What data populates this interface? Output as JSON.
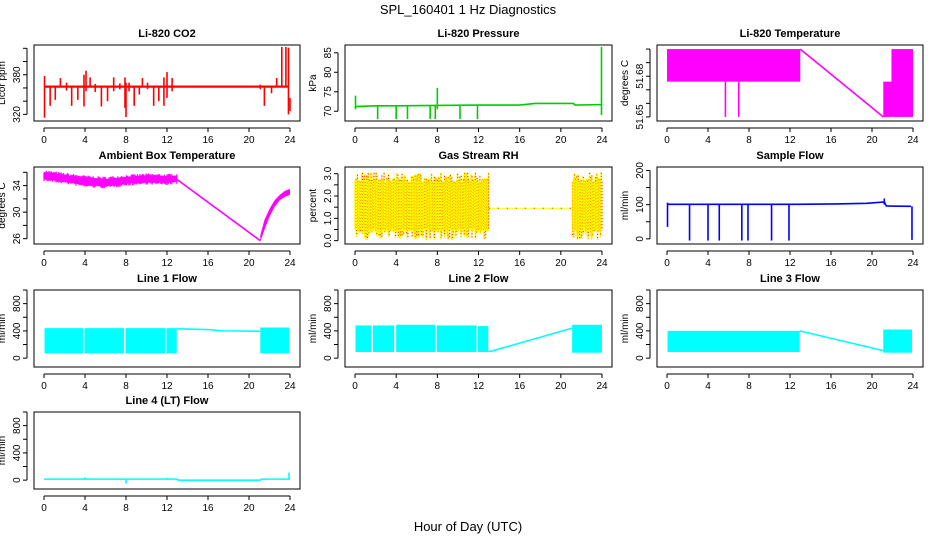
{
  "figure": {
    "title": "SPL_160401  1 Hz Diagnostics",
    "xlabel": "Hour of Day (UTC)"
  },
  "chart_data": [
    {
      "id": "co2",
      "type": "line",
      "title": "Li-820 CO2",
      "ylabel": "Licor ppm",
      "color": "#ff0000",
      "xlim": [
        0,
        24
      ],
      "ylim": [
        310,
        425
      ],
      "xticks": [
        0,
        4,
        8,
        12,
        16,
        20,
        24
      ],
      "yticks": [
        320,
        340,
        360,
        380,
        400,
        420
      ],
      "ytick_labels": [
        "320",
        "",
        "",
        "380",
        "",
        ""
      ],
      "baseline": 362,
      "segments": [
        {
          "x": [
            0,
            0.1,
            0.2,
            12.6,
            19,
            21,
            23.8
          ],
          "y": [
            362,
            362,
            362,
            362,
            362,
            362,
            362
          ]
        }
      ],
      "spikes": [
        {
          "x": 0.05,
          "y0": 315,
          "y1": 378
        },
        {
          "x": 0.6,
          "y0": 333,
          "y1": 362
        },
        {
          "x": 1.1,
          "y0": 342,
          "y1": 362
        },
        {
          "x": 1.6,
          "y0": 362,
          "y1": 375
        },
        {
          "x": 2.2,
          "y0": 356,
          "y1": 368
        },
        {
          "x": 2.7,
          "y0": 333,
          "y1": 362
        },
        {
          "x": 3.3,
          "y0": 342,
          "y1": 362
        },
        {
          "x": 3.9,
          "y0": 332,
          "y1": 380
        },
        {
          "x": 4.1,
          "y0": 355,
          "y1": 386
        },
        {
          "x": 4.5,
          "y0": 362,
          "y1": 376
        },
        {
          "x": 5.0,
          "y0": 354,
          "y1": 366
        },
        {
          "x": 5.6,
          "y0": 332,
          "y1": 362
        },
        {
          "x": 6.2,
          "y0": 340,
          "y1": 362
        },
        {
          "x": 6.8,
          "y0": 355,
          "y1": 376
        },
        {
          "x": 7.4,
          "y0": 358,
          "y1": 367
        },
        {
          "x": 7.9,
          "y0": 330,
          "y1": 376
        },
        {
          "x": 8.0,
          "y0": 316,
          "y1": 368
        },
        {
          "x": 8.3,
          "y0": 355,
          "y1": 368
        },
        {
          "x": 8.8,
          "y0": 333,
          "y1": 362
        },
        {
          "x": 9.3,
          "y0": 350,
          "y1": 362
        },
        {
          "x": 9.6,
          "y0": 362,
          "y1": 375
        },
        {
          "x": 10.1,
          "y0": 358,
          "y1": 368
        },
        {
          "x": 10.7,
          "y0": 333,
          "y1": 362
        },
        {
          "x": 11.2,
          "y0": 340,
          "y1": 362
        },
        {
          "x": 11.7,
          "y0": 333,
          "y1": 376
        },
        {
          "x": 12.0,
          "y0": 345,
          "y1": 384
        },
        {
          "x": 12.5,
          "y0": 355,
          "y1": 375
        },
        {
          "x": 21.1,
          "y0": 358,
          "y1": 365
        },
        {
          "x": 21.5,
          "y0": 333,
          "y1": 362
        },
        {
          "x": 22.2,
          "y0": 352,
          "y1": 362
        },
        {
          "x": 22.7,
          "y0": 362,
          "y1": 375
        },
        {
          "x": 23.2,
          "y0": 362,
          "y1": 422
        },
        {
          "x": 23.6,
          "y0": 362,
          "y1": 422
        },
        {
          "x": 23.85,
          "y0": 320,
          "y1": 421
        },
        {
          "x": 24.0,
          "y0": 325,
          "y1": 345
        }
      ]
    },
    {
      "id": "pressure",
      "type": "line",
      "title": "Li-820 Pressure",
      "ylabel": "kPa",
      "color": "#00cc00",
      "xlim": [
        0,
        24
      ],
      "ylim": [
        67.5,
        87
      ],
      "xticks": [
        0,
        4,
        8,
        12,
        16,
        20,
        24
      ],
      "yticks": [
        70,
        75,
        80,
        85
      ],
      "ytick_labels": [
        "70",
        "75",
        "80",
        "85"
      ],
      "segments": [
        {
          "x": [
            0,
            2,
            4,
            8,
            12,
            16,
            17.5,
            21.2,
            21.4,
            23.9
          ],
          "y": [
            71.2,
            71.4,
            71.4,
            71.5,
            71.6,
            71.6,
            72.0,
            72.0,
            71.6,
            71.7
          ]
        }
      ],
      "spikes": [
        {
          "x": 0.05,
          "y0": 70.5,
          "y1": 74
        },
        {
          "x": 2.2,
          "y0": 68,
          "y1": 71.5
        },
        {
          "x": 4.0,
          "y0": 68,
          "y1": 71.5
        },
        {
          "x": 5.1,
          "y0": 68,
          "y1": 71.5
        },
        {
          "x": 7.3,
          "y0": 68,
          "y1": 71.5
        },
        {
          "x": 7.8,
          "y0": 68,
          "y1": 71.5
        },
        {
          "x": 8.0,
          "y0": 70.5,
          "y1": 76
        },
        {
          "x": 10.2,
          "y0": 68,
          "y1": 71.5
        },
        {
          "x": 11.9,
          "y0": 68,
          "y1": 71.5
        },
        {
          "x": 23.95,
          "y0": 69,
          "y1": 86.5
        }
      ]
    },
    {
      "id": "li820-temp",
      "type": "line",
      "title": "Li-820 Temperature",
      "ylabel": "degrees C",
      "color": "#ff00ff",
      "xlim": [
        0,
        24
      ],
      "ylim": [
        51.647,
        51.703
      ],
      "xticks": [
        0,
        4,
        8,
        12,
        16,
        20,
        24
      ],
      "yticks": [
        51.65,
        51.66,
        51.67,
        51.68,
        51.69,
        51.7
      ],
      "ytick_labels": [
        "51.65",
        "",
        "",
        "51.68",
        "",
        ""
      ],
      "bands": [
        {
          "x0": 0,
          "x1": 13,
          "y0": 51.676,
          "y1": 51.7
        },
        {
          "x0": 21.1,
          "x1": 21.9,
          "y0": 51.65,
          "y1": 51.676
        },
        {
          "x0": 21.9,
          "x1": 24,
          "y0": 51.65,
          "y1": 51.7
        }
      ],
      "segments": [
        {
          "x": [
            13,
            21.1
          ],
          "y": [
            51.7,
            51.65
          ]
        }
      ],
      "spikes": [
        {
          "x": 5.7,
          "y0": 51.65,
          "y1": 51.676
        },
        {
          "x": 7.0,
          "y0": 51.65,
          "y1": 51.676
        }
      ]
    },
    {
      "id": "ambient-temp",
      "type": "line",
      "title": "Ambient Box Temperature",
      "ylabel": "degrees C",
      "color": "#ff00ff",
      "xlim": [
        0,
        24
      ],
      "ylim": [
        25.2,
        36.8
      ],
      "xticks": [
        0,
        4,
        8,
        12,
        16,
        20,
        24
      ],
      "yticks": [
        26,
        28,
        30,
        32,
        34,
        36
      ],
      "ytick_labels": [
        "26",
        "",
        "30",
        "",
        "34",
        ""
      ],
      "bands_poly": {
        "x": [
          0,
          2,
          4,
          6,
          8,
          10,
          12,
          13
        ],
        "upper": [
          36.0,
          35.6,
          35.2,
          35.0,
          35.3,
          35.5,
          35.4,
          35.5
        ],
        "lower": [
          35.0,
          34.6,
          34.1,
          33.9,
          34.3,
          34.5,
          34.4,
          34.6
        ]
      },
      "segments": [
        {
          "x": [
            13,
            21.1
          ],
          "y": [
            34.9,
            25.7
          ]
        }
      ],
      "recovery": {
        "x": [
          21.1,
          21.5,
          22,
          22.5,
          23,
          23.5,
          24
        ],
        "upper": [
          26.5,
          28.8,
          30.5,
          31.8,
          32.6,
          33.2,
          33.5
        ],
        "lower": [
          25.5,
          27.3,
          29.3,
          30.8,
          31.8,
          32.3,
          32.6
        ]
      }
    },
    {
      "id": "gas-rh",
      "type": "line",
      "title": "Gas Stream RH",
      "ylabel": "percent",
      "colors": [
        "#ffff00",
        "#ff0000"
      ],
      "xlim": [
        0,
        24
      ],
      "ylim": [
        -0.15,
        3.3
      ],
      "xticks": [
        0,
        4,
        8,
        12,
        16,
        20,
        24
      ],
      "yticks": [
        0.0,
        0.5,
        1.0,
        1.5,
        2.0,
        2.5,
        3.0
      ],
      "ytick_labels": [
        "0.0",
        "",
        "1.0",
        "",
        "2.0",
        "",
        "3.0"
      ],
      "active_periods": [
        [
          0,
          13
        ],
        [
          21.1,
          24
        ]
      ],
      "typical_range": [
        0.5,
        2.6
      ],
      "extreme_range": [
        0.0,
        3.1
      ],
      "idle_value": 1.45
    },
    {
      "id": "sample-flow",
      "type": "line",
      "title": "Sample Flow",
      "ylabel": "ml/min",
      "color": "#0000ff",
      "xlim": [
        0,
        24
      ],
      "ylim": [
        -15,
        210
      ],
      "xticks": [
        0,
        4,
        8,
        12,
        16,
        20,
        24
      ],
      "yticks": [
        0,
        50,
        100,
        150,
        200
      ],
      "ytick_labels": [
        "0",
        "",
        "100",
        "",
        "200"
      ],
      "segments": [
        {
          "x": [
            0,
            12.6,
            16.5,
            19.5,
            21.2,
            21.4,
            23.8
          ],
          "y": [
            101,
            101,
            102,
            104,
            108,
            96,
            95
          ]
        }
      ],
      "spikes": [
        {
          "x": 0.05,
          "y0": 35,
          "y1": 106
        },
        {
          "x": 2.2,
          "y0": -5,
          "y1": 100
        },
        {
          "x": 4.0,
          "y0": -5,
          "y1": 100
        },
        {
          "x": 5.1,
          "y0": -5,
          "y1": 100
        },
        {
          "x": 7.3,
          "y0": -5,
          "y1": 100
        },
        {
          "x": 7.9,
          "y0": -5,
          "y1": 100
        },
        {
          "x": 10.2,
          "y0": -5,
          "y1": 100
        },
        {
          "x": 11.9,
          "y0": -5,
          "y1": 102
        },
        {
          "x": 21.2,
          "y0": 100,
          "y1": 118
        },
        {
          "x": 23.9,
          "y0": -3,
          "y1": 95
        }
      ]
    },
    {
      "id": "line1-flow",
      "type": "line",
      "title": "Line 1 Flow",
      "ylabel": "ml/min",
      "color": "#00ffff",
      "xlim": [
        0,
        24
      ],
      "ylim": [
        -130,
        1000
      ],
      "xticks": [
        0,
        4,
        8,
        12,
        16,
        20,
        24
      ],
      "yticks": [
        0,
        200,
        400,
        600,
        800,
        1000
      ],
      "ytick_labels": [
        "0",
        "",
        "400",
        "",
        "800",
        ""
      ],
      "bands": [
        {
          "x0": 0.05,
          "x1": 3.8,
          "y0": 70,
          "y1": 440
        },
        {
          "x0": 3.95,
          "x1": 7.8,
          "y0": 70,
          "y1": 440
        },
        {
          "x0": 7.95,
          "x1": 11.8,
          "y0": 70,
          "y1": 440
        },
        {
          "x0": 11.95,
          "x1": 12.95,
          "y0": 70,
          "y1": 440
        },
        {
          "x0": 21.1,
          "x1": 23.9,
          "y0": 70,
          "y1": 450
        }
      ],
      "segments": [
        {
          "x": [
            12.95,
            16,
            17.5,
            21.1
          ],
          "y": [
            430,
            420,
            400,
            395
          ]
        }
      ]
    },
    {
      "id": "line2-flow",
      "type": "line",
      "title": "Line 2 Flow",
      "ylabel": "ml/min",
      "color": "#00ffff",
      "xlim": [
        0,
        24
      ],
      "ylim": [
        -130,
        1000
      ],
      "xticks": [
        0,
        4,
        8,
        12,
        16,
        20,
        24
      ],
      "yticks": [
        0,
        200,
        400,
        600,
        800,
        1000
      ],
      "ytick_labels": [
        "0",
        "",
        "400",
        "",
        "800",
        ""
      ],
      "bands": [
        {
          "x0": 0.05,
          "x1": 1.6,
          "y0": 90,
          "y1": 480
        },
        {
          "x0": 1.75,
          "x1": 3.8,
          "y0": 90,
          "y1": 480
        },
        {
          "x0": 4.0,
          "x1": 7.8,
          "y0": 90,
          "y1": 490
        },
        {
          "x0": 7.95,
          "x1": 11.8,
          "y0": 90,
          "y1": 480
        },
        {
          "x0": 11.95,
          "x1": 12.95,
          "y0": 90,
          "y1": 470
        },
        {
          "x0": 21.1,
          "x1": 24,
          "y0": 80,
          "y1": 490
        }
      ],
      "segments": [
        {
          "x": [
            12.95,
            13.2,
            21.1
          ],
          "y": [
            100,
            100,
            440
          ]
        }
      ]
    },
    {
      "id": "line3-flow",
      "type": "line",
      "title": "Line 3 Flow",
      "ylabel": "ml/min",
      "color": "#00ffff",
      "xlim": [
        0,
        24
      ],
      "ylim": [
        -130,
        1000
      ],
      "xticks": [
        0,
        4,
        8,
        12,
        16,
        20,
        24
      ],
      "yticks": [
        0,
        200,
        400,
        600,
        800,
        1000
      ],
      "ytick_labels": [
        "0",
        "",
        "400",
        "",
        "800",
        ""
      ],
      "bands": [
        {
          "x0": 0.05,
          "x1": 12.95,
          "y0": 90,
          "y1": 400
        },
        {
          "x0": 21.1,
          "x1": 23.9,
          "y0": 80,
          "y1": 420
        }
      ],
      "segments": [
        {
          "x": [
            12.95,
            21.1
          ],
          "y": [
            400,
            110
          ]
        }
      ]
    },
    {
      "id": "line4-flow",
      "type": "line",
      "title": "Line 4 (LT) Flow",
      "ylabel": "ml/min",
      "color": "#00ffff",
      "xlim": [
        0,
        24
      ],
      "ylim": [
        -130,
        1000
      ],
      "xticks": [
        0,
        4,
        8,
        12,
        16,
        20,
        24
      ],
      "yticks": [
        0,
        200,
        400,
        600,
        800,
        1000
      ],
      "ytick_labels": [
        "0",
        "",
        "400",
        "",
        "800",
        ""
      ],
      "segments": [
        {
          "x": [
            0,
            13,
            13.1,
            21.1,
            21.2,
            24
          ],
          "y": [
            15,
            15,
            0,
            0,
            15,
            15
          ]
        }
      ],
      "spikes": [
        {
          "x": 4.0,
          "y0": 15,
          "y1": 40
        },
        {
          "x": 8.0,
          "y0": -50,
          "y1": 15
        },
        {
          "x": 12.0,
          "y0": 15,
          "y1": 35
        },
        {
          "x": 23.9,
          "y0": 15,
          "y1": 110
        }
      ]
    }
  ]
}
